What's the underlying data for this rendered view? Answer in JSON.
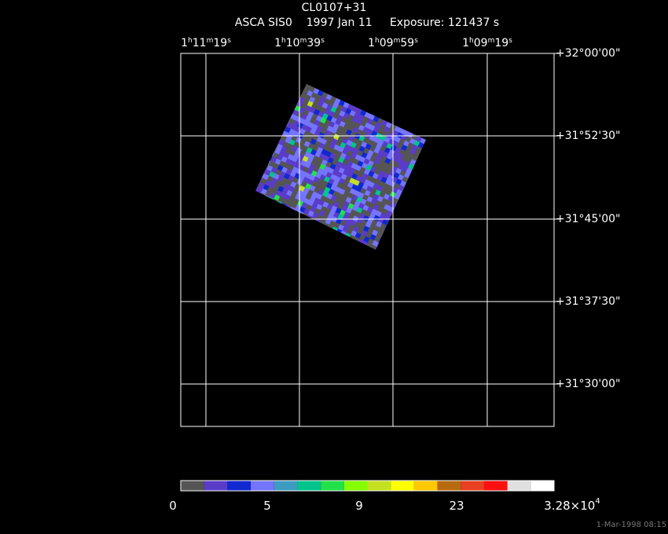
{
  "title": "CL0107+31",
  "subtitle": "ASCA SIS0    1997 Jan 11     Exposure: 121437 s",
  "ra_labels": [
    [
      "1",
      "h",
      "11",
      "m",
      "19",
      "s"
    ],
    [
      "1",
      "h",
      "10",
      "m",
      "39",
      "s"
    ],
    [
      "1",
      "h",
      "09",
      "m",
      "59",
      "s"
    ],
    [
      "1",
      "h",
      "09",
      "m",
      "19",
      "s"
    ]
  ],
  "dec_labels": [
    "+32°00'00\"",
    "+31°52'30\"",
    "+31°45'00\"",
    "+31°37'30\"",
    "+31°30'00\""
  ],
  "colorbar": {
    "colors": [
      "#555555",
      "#5a3cc8",
      "#1028d0",
      "#7474ff",
      "#3c9cc0",
      "#00c48c",
      "#22e04a",
      "#84ff00",
      "#c4e020",
      "#ffff00",
      "#ffc800",
      "#b86a10",
      "#e84020",
      "#ff1010",
      "#e0e0e0",
      "#ffffff"
    ],
    "labels": [
      [
        "0"
      ],
      [
        "5"
      ],
      [
        "9"
      ],
      [
        "23"
      ],
      [
        "3.28×10",
        "4"
      ]
    ]
  },
  "footer": "1-Mar-1998 08:15"
}
